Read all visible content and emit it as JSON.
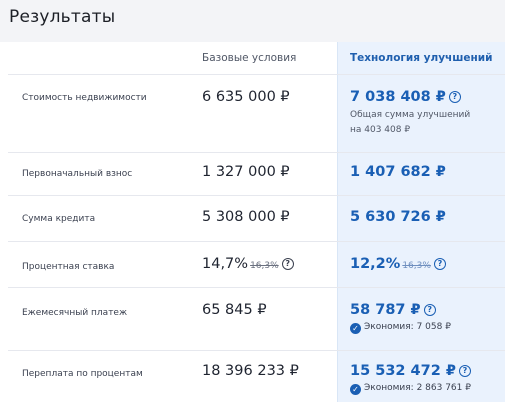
{
  "title": "Результаты",
  "headers": {
    "base": "Базовые условия",
    "tech": "Технология улучшений"
  },
  "rows": [
    {
      "label": "Стоимость недвижимости",
      "base": "6 635 000 ₽",
      "tech": "7 038 408 ₽",
      "note1": "Общая сумма улучшений",
      "note2": "на 403 408 ₽"
    },
    {
      "label": "Первоначальный взнос",
      "base": "1 327 000 ₽",
      "tech": "1 407 682 ₽"
    },
    {
      "label": "Сумма кредита",
      "base": "5 308 000 ₽",
      "tech": "5 630 726 ₽"
    },
    {
      "label": "Процентная ставка",
      "base": "14,7%",
      "base_old": "16,3%",
      "tech": "12,2%",
      "tech_old": "16,3%"
    },
    {
      "label": "Ежемесячный платеж",
      "base": "65 845 ₽",
      "tech": "58 787 ₽",
      "saving": "Экономия: 7 058 ₽"
    },
    {
      "label": "Переплата по процентам",
      "base": "18 396 233 ₽",
      "tech": "15 532 472 ₽",
      "saving": "Экономия: 2 863 761 ₽"
    }
  ],
  "icons": {
    "info": "info-icon",
    "check": "check-circle-icon"
  },
  "colors": {
    "accent": "#1a5fb4",
    "tech_column_bg": "#eaf2fd"
  }
}
